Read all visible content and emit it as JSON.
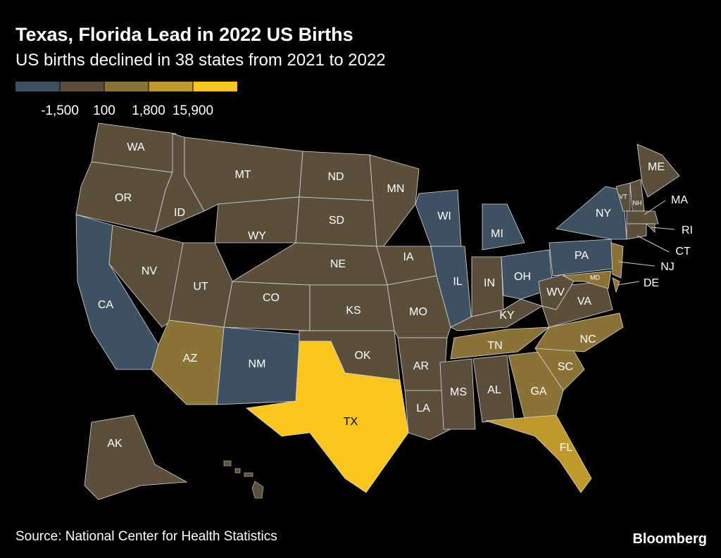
{
  "header": {
    "title": "Texas, Florida Lead in 2022 US Births",
    "subtitle": "US births declined in 38 states from 2021 to 2022"
  },
  "legend": {
    "colors": [
      "#3d5163",
      "#5b4f3c",
      "#8a7335",
      "#bf9a2a",
      "#fac61c"
    ],
    "ticks": [
      {
        "value": -1500,
        "label": "-1,500"
      },
      100,
      {
        "value": 1800,
        "label": "1,800"
      },
      {
        "value": 15900,
        "label": "15,900"
      }
    ]
  },
  "states": [
    {
      "label": "WA",
      "color": "#5b4f3c"
    },
    {
      "label": "OR",
      "color": "#5b4f3c"
    },
    {
      "label": "CA",
      "color": "#3d5163"
    },
    {
      "label": "ID",
      "color": "#5b4f3c"
    },
    {
      "label": "NV",
      "color": "#5b4f3c"
    },
    {
      "label": "MT",
      "color": "#5b4f3c"
    },
    {
      "label": "WY",
      "color": "#5b4f3c"
    },
    {
      "label": "UT",
      "color": "#5b4f3c"
    },
    {
      "label": "CO",
      "color": "#5b4f3c"
    },
    {
      "label": "AZ",
      "color": "#8a7335"
    },
    {
      "label": "NM",
      "color": "#3d5163"
    },
    {
      "label": "ND",
      "color": "#5b4f3c"
    },
    {
      "label": "SD",
      "color": "#5b4f3c"
    },
    {
      "label": "NE",
      "color": "#5b4f3c"
    },
    {
      "label": "KS",
      "color": "#5b4f3c"
    },
    {
      "label": "OK",
      "color": "#5b4f3c"
    },
    {
      "label": "TX",
      "color": "#fac61c"
    },
    {
      "label": "MN",
      "color": "#5b4f3c"
    },
    {
      "label": "IA",
      "color": "#5b4f3c"
    },
    {
      "label": "MO",
      "color": "#5b4f3c"
    },
    {
      "label": "AR",
      "color": "#5b4f3c"
    },
    {
      "label": "LA",
      "color": "#5b4f3c"
    },
    {
      "label": "WI",
      "color": "#3d5163"
    },
    {
      "label": "IL",
      "color": "#3d5163"
    },
    {
      "label": "MI",
      "color": "#3d5163"
    },
    {
      "label": "IN",
      "color": "#5b4f3c"
    },
    {
      "label": "OH",
      "color": "#3d5163"
    },
    {
      "label": "KY",
      "color": "#5b4f3c"
    },
    {
      "label": "TN",
      "color": "#8a7335"
    },
    {
      "label": "MS",
      "color": "#5b4f3c"
    },
    {
      "label": "AL",
      "color": "#5b4f3c"
    },
    {
      "label": "GA",
      "color": "#8a7335"
    },
    {
      "label": "FL",
      "color": "#bf9a2a"
    },
    {
      "label": "SC",
      "color": "#8a7335"
    },
    {
      "label": "NC",
      "color": "#8a7335"
    },
    {
      "label": "VA",
      "color": "#5b4f3c"
    },
    {
      "label": "WV",
      "color": "#5b4f3c"
    },
    {
      "label": "PA",
      "color": "#3d5163"
    },
    {
      "label": "NY",
      "color": "#3d5163"
    },
    {
      "label": "NJ",
      "color": "#8a7335"
    },
    {
      "label": "MD",
      "color": "#8a7335"
    },
    {
      "label": "DE",
      "color": "#8a7335"
    },
    {
      "label": "VT",
      "color": "#5b4f3c"
    },
    {
      "label": "NH",
      "color": "#5b4f3c"
    },
    {
      "label": "ME",
      "color": "#5b4f3c"
    },
    {
      "label": "MA",
      "color": "#5b4f3c"
    },
    {
      "label": "RI",
      "color": "#5b4f3c"
    },
    {
      "label": "CT",
      "color": "#5b4f3c"
    },
    {
      "label": "AK",
      "color": "#5b4f3c"
    }
  ],
  "footer": {
    "source": "Source: National Center for Health Statistics",
    "brand": "Bloomberg"
  }
}
